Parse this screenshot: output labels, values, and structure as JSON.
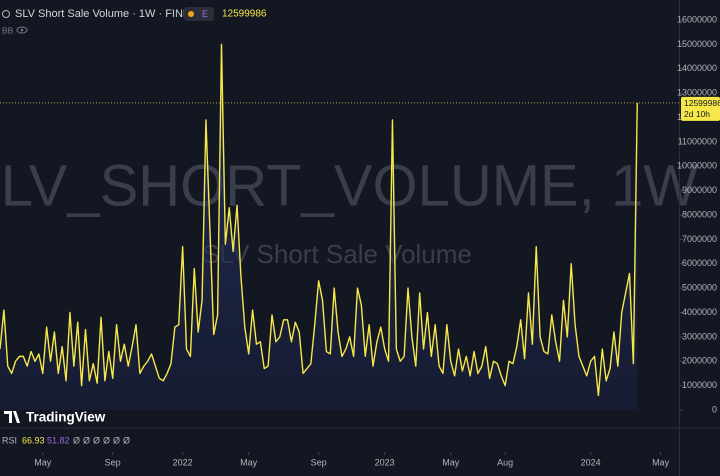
{
  "chart_data": {
    "type": "line",
    "title": "SLV Short Sale Volume · 1W · FINRA",
    "badge": "E",
    "study_label": "BB",
    "watermark": "SLV_SHORT_VOLUME, 1W",
    "watermark_subtitle": "SLV Short Sale Volume",
    "brand": "TradingView",
    "countdown": "2d 10h",
    "indicator": {
      "name": "RSI",
      "values": [
        66.93,
        51.82
      ],
      "placeholders": [
        "Ø",
        "Ø",
        "Ø",
        "Ø",
        "Ø",
        "Ø"
      ]
    },
    "xlim": [
      0,
      175
    ],
    "xticks": [
      {
        "value": 11,
        "label": "May"
      },
      {
        "value": 29,
        "label": "Sep"
      },
      {
        "value": 47,
        "label": "2022"
      },
      {
        "value": 64,
        "label": "May"
      },
      {
        "value": 82,
        "label": "Sep"
      },
      {
        "value": 99,
        "label": "2023"
      },
      {
        "value": 116,
        "label": "May"
      },
      {
        "value": 130,
        "label": "Aug"
      },
      {
        "value": 152,
        "label": "2024"
      },
      {
        "value": 170,
        "label": "May"
      }
    ],
    "ylim": [
      0,
      16000000
    ],
    "yticks": [
      0,
      1000000,
      2000000,
      3000000,
      4000000,
      5000000,
      6000000,
      7000000,
      8000000,
      9000000,
      10000000,
      11000000,
      12000000,
      13000000,
      14000000,
      15000000,
      16000000
    ],
    "series": [
      {
        "name": "SLV Short Sale Volume",
        "color": "#f7e84a",
        "values": [
          2500000,
          4100000,
          1800000,
          1500000,
          2000000,
          2200000,
          2200000,
          1800000,
          2400000,
          2000000,
          2300000,
          1500000,
          3400000,
          2000000,
          3200000,
          1500000,
          2600000,
          1200000,
          4000000,
          1800000,
          3600000,
          1000000,
          3300000,
          1200000,
          1900000,
          1100000,
          3800000,
          1200000,
          2400000,
          1300000,
          3500000,
          2000000,
          2700000,
          1800000,
          2600000,
          3500000,
          1500000,
          1800000,
          2000000,
          2300000,
          1800000,
          1300000,
          1200000,
          1500000,
          1900000,
          3400000,
          3500000,
          6700000,
          2500000,
          2200000,
          5800000,
          3200000,
          4500000,
          11900000,
          7500000,
          3100000,
          3900000,
          15000000,
          6800000,
          8300000,
          6500000,
          8400000,
          5500000,
          3400000,
          2300000,
          4100000,
          2700000,
          2800000,
          1700000,
          1800000,
          3900000,
          2800000,
          3000000,
          3700000,
          3700000,
          2800000,
          3600000,
          3200000,
          1500000,
          1700000,
          1900000,
          3500000,
          5300000,
          4500000,
          2400000,
          2300000,
          5000000,
          3200000,
          2200000,
          2500000,
          3000000,
          2200000,
          5000000,
          4300000,
          2200000,
          3500000,
          1800000,
          2800000,
          3400000,
          2500000,
          2000000,
          11900000,
          2500000,
          2000000,
          2200000,
          5000000,
          3000000,
          1800000,
          4800000,
          2500000,
          4000000,
          2200000,
          3500000,
          1800000,
          1500000,
          3500000,
          2000000,
          1400000,
          2500000,
          1600000,
          2200000,
          1400000,
          2400000,
          1500000,
          1800000,
          2600000,
          1300000,
          2000000,
          1900000,
          1400000,
          1000000,
          2000000,
          1900000,
          2600000,
          3700000,
          2100000,
          4800000,
          2700000,
          6700000,
          3000000,
          2400000,
          2300000,
          3900000,
          2800000,
          2000000,
          4500000,
          3000000,
          6000000,
          3500000,
          2200000,
          1800000,
          1400000,
          2000000,
          2200000,
          600000,
          2500000,
          1200000,
          1700000,
          3200000,
          1800000,
          4000000,
          4800000,
          5600000,
          1900000,
          12599986
        ]
      }
    ]
  }
}
